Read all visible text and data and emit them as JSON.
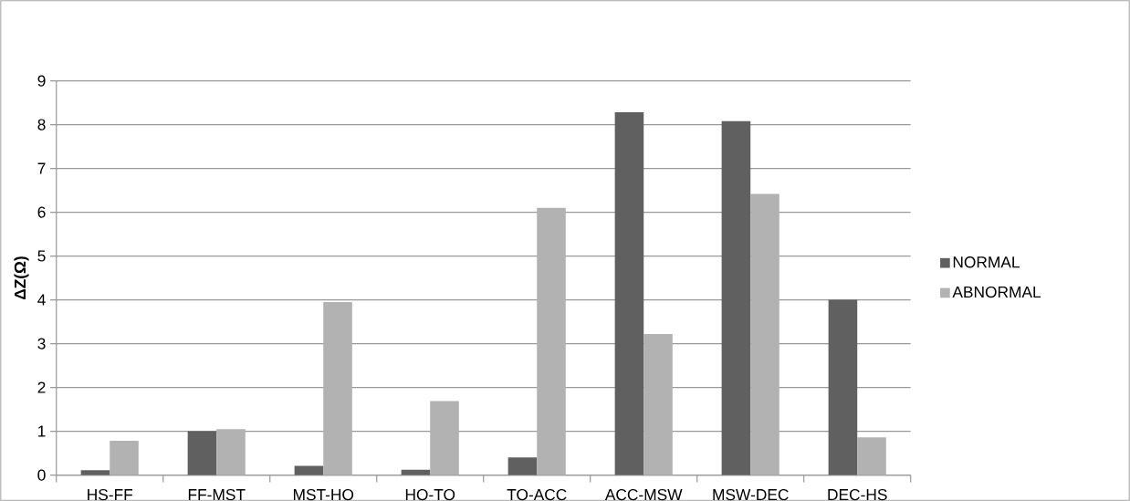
{
  "chart_data": {
    "type": "bar",
    "ylabel": "ΔZ(Ω)",
    "categories": [
      "HS-FF",
      "FF-MST",
      "MST-HO",
      "HO-TO",
      "TO-ACC",
      "ACC-MSW",
      "MSW-DEC",
      "DEC-HS"
    ],
    "series": [
      {
        "name": "NORMAL",
        "color": "#606060",
        "values": [
          0.11,
          1.0,
          0.21,
          0.12,
          0.4,
          8.28,
          8.08,
          4.0
        ]
      },
      {
        "name": "ABNORMAL",
        "color": "#b2b2b2",
        "values": [
          0.78,
          1.05,
          3.95,
          1.69,
          6.1,
          3.22,
          6.42,
          0.86
        ]
      }
    ],
    "ylim": [
      0,
      9
    ],
    "yticks": [
      0,
      1,
      2,
      3,
      4,
      5,
      6,
      7,
      8,
      9
    ],
    "grid": "y",
    "legend": "right"
  }
}
